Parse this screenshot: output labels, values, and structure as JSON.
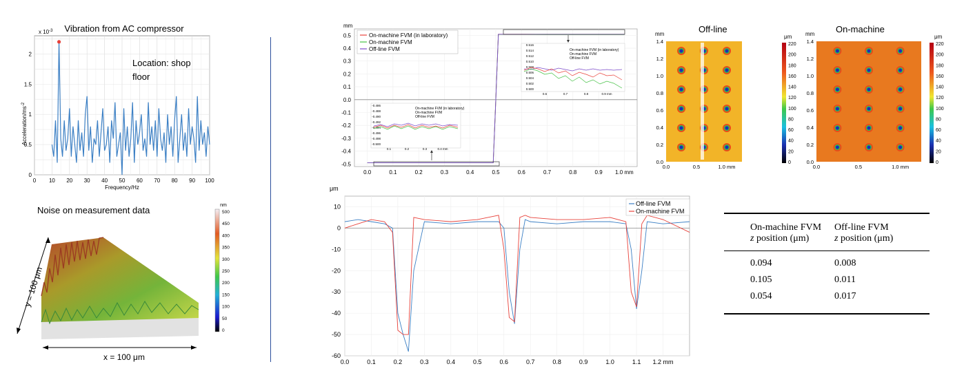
{
  "vibration": {
    "title": "Vibration from AC compressor",
    "note": "Location: shop floor",
    "exponent": "x 10",
    "exponent_power": "-3",
    "ylabel": "Acceleration/ms",
    "ylabel_power": "-2",
    "xlabel": "Frequency/Hz"
  },
  "noise": {
    "title": "Noise on measurement data",
    "colorbar_unit": "nm",
    "colorbar_ticks": [
      "500",
      "450",
      "400",
      "350",
      "300",
      "250",
      "200",
      "150",
      "100",
      "50",
      "0"
    ],
    "y_label": "y = 100 μm",
    "x_label": "x = 100 μm"
  },
  "step": {
    "yunit": "mm",
    "xunit_last": "1.0 mm",
    "legend": [
      "On-machine FVM (in laboratory)",
      "On-machine FVM",
      "Off-line FVM"
    ],
    "inset_top_yticks": [
      "0.516",
      "0.514",
      "0.512",
      "0.510",
      "0.508",
      "0.506",
      "0.504",
      "0.502",
      "0.500"
    ],
    "inset_top_xticks": [
      "0.6",
      "0.7",
      "0.8",
      "0.9 mm"
    ],
    "inset_bottom_yticks": [
      "-0.486",
      "-0.488",
      "-0.490",
      "-0.492",
      "-0.494",
      "-0.496",
      "-0.498",
      "-0.500"
    ],
    "inset_bottom_xticks": [
      "0.1",
      "0.2",
      "0.3",
      "0.4 mm"
    ]
  },
  "maps": {
    "offline_title": "Off-line",
    "onmachine_title": "On-machine",
    "yunit": "mm",
    "yticks": [
      "1.4",
      "1.2",
      "1.0",
      "0.8",
      "0.6",
      "0.4",
      "0.2",
      "0.0"
    ],
    "xticks": [
      "0.0",
      "0.5",
      "1.0 mm"
    ],
    "cb_unit": "μm",
    "cb_ticks": [
      "220",
      "200",
      "180",
      "160",
      "140",
      "120",
      "100",
      "80",
      "60",
      "40",
      "20",
      "0"
    ]
  },
  "profile": {
    "yunit": "μm",
    "xunit_last": "1.2 mm",
    "legend": [
      "Off-line FVM",
      "On-machine FVM"
    ]
  },
  "table": {
    "col1_line1": "On-machine FVM",
    "col2_line1": "Off-line FVM",
    "z": "z",
    "position": " position (μm)",
    "rows": [
      [
        "0.094",
        "0.008"
      ],
      [
        "0.105",
        "0.011"
      ],
      [
        "0.054",
        "0.017"
      ]
    ]
  },
  "colors": {
    "blue": "#3b7fc4",
    "red": "#e8413a",
    "green": "#43c043",
    "purple": "#7b4ac9",
    "divider": "#2a4d9b"
  },
  "chart_data": [
    {
      "type": "line",
      "title": "Vibration from AC compressor",
      "xlabel": "Frequency/Hz",
      "ylabel": "Acceleration/ms-2 (x 10-3)",
      "xlim": [
        0,
        100
      ],
      "ylim": [
        0,
        2.3
      ],
      "x": [
        10,
        11,
        12,
        13,
        14,
        15,
        16,
        17,
        18,
        19,
        20,
        21,
        22,
        23,
        24,
        25,
        26,
        27,
        28,
        29,
        30,
        31,
        32,
        33,
        34,
        35,
        36,
        37,
        38,
        39,
        40,
        41,
        42,
        43,
        44,
        45,
        46,
        47,
        48,
        49,
        50,
        51,
        52,
        53,
        54,
        55,
        56,
        57,
        58,
        59,
        60,
        61,
        62,
        63,
        64,
        65,
        66,
        67,
        68,
        69,
        70,
        71,
        72,
        73,
        74,
        75,
        76,
        77,
        78,
        79,
        80,
        81,
        82,
        83,
        84,
        85,
        86,
        87,
        88,
        89,
        90,
        91,
        92,
        93,
        94,
        95,
        96,
        97,
        98,
        99,
        100
      ],
      "series": [
        {
          "values": [
            0.5,
            0.3,
            0.9,
            0.2,
            2.2,
            0.6,
            0.3,
            0.9,
            0.4,
            0.6,
            1.1,
            0.3,
            0.8,
            0.5,
            0.2,
            0.9,
            0.4,
            0.7,
            0.3,
            1.0,
            1.3,
            0.4,
            0.8,
            0.2,
            0.6,
            0.5,
            0.9,
            0.3,
            0.7,
            1.1,
            0.4,
            0.5,
            0.8,
            0.2,
            0.9,
            0.6,
            1.2,
            0.3,
            0.5,
            0.7,
            0.0,
            1.1,
            0.4,
            0.8,
            0.3,
            0.6,
            1.2,
            0.2,
            0.9,
            0.5,
            0.7,
            1.0,
            0.4,
            0.6,
            0.3,
            1.2,
            0.5,
            0.8,
            0.4,
            0.9,
            0.3,
            1.1,
            0.6,
            0.4,
            0.7,
            0.2,
            1.0,
            0.5,
            0.8,
            0.3,
            0.9,
            1.3,
            0.2,
            0.6,
            1.0,
            0.4,
            0.7,
            0.3,
            1.1,
            0.5,
            0.8,
            0.6,
            0.2,
            1.3,
            0.4,
            0.9,
            0.5,
            0.7,
            0.3,
            0.8,
            0.5
          ]
        }
      ]
    },
    {
      "type": "line",
      "title": "",
      "xlabel": "mm",
      "ylabel": "mm",
      "xlim": [
        -0.05,
        1.05
      ],
      "ylim": [
        -0.52,
        0.55
      ],
      "x": [
        0.0,
        0.1,
        0.2,
        0.3,
        0.4,
        0.49,
        0.5,
        0.51,
        0.6,
        0.7,
        0.8,
        0.9,
        1.0
      ],
      "series": [
        {
          "name": "On-machine FVM (in laboratory)",
          "values": [
            -0.49,
            -0.49,
            -0.49,
            -0.49,
            -0.49,
            -0.49,
            0.0,
            0.508,
            0.508,
            0.507,
            0.507,
            0.507,
            0.507
          ]
        },
        {
          "name": "On-machine FVM",
          "values": [
            -0.49,
            -0.49,
            -0.49,
            -0.49,
            -0.49,
            -0.49,
            0.0,
            0.507,
            0.507,
            0.506,
            0.506,
            0.506,
            0.506
          ]
        },
        {
          "name": "Off-line FVM",
          "values": [
            -0.49,
            -0.49,
            -0.49,
            -0.49,
            -0.49,
            -0.49,
            0.0,
            0.508,
            0.508,
            0.508,
            0.508,
            0.508,
            0.508
          ]
        }
      ]
    },
    {
      "type": "line",
      "title": "",
      "xlabel": "mm",
      "ylabel": "μm",
      "xlim": [
        0,
        1.3
      ],
      "ylim": [
        -60,
        15
      ],
      "x": [
        0.0,
        0.05,
        0.1,
        0.15,
        0.18,
        0.2,
        0.22,
        0.24,
        0.26,
        0.3,
        0.4,
        0.5,
        0.58,
        0.6,
        0.62,
        0.64,
        0.66,
        0.68,
        0.7,
        0.8,
        0.9,
        1.0,
        1.06,
        1.08,
        1.1,
        1.12,
        1.14,
        1.2,
        1.3
      ],
      "series": [
        {
          "name": "Off-line FVM",
          "values": [
            3,
            4,
            3,
            2,
            0,
            -40,
            -50,
            -58,
            -20,
            3,
            2,
            3,
            3,
            0,
            -30,
            -45,
            -10,
            4,
            3,
            2,
            3,
            3,
            2,
            -10,
            -38,
            -20,
            3,
            2,
            3
          ]
        },
        {
          "name": "On-machine FVM",
          "values": [
            0,
            2,
            4,
            3,
            -2,
            -48,
            -50,
            -50,
            5,
            4,
            3,
            4,
            6,
            -10,
            -42,
            -44,
            5,
            6,
            5,
            4,
            4,
            5,
            3,
            -30,
            -37,
            2,
            6,
            4,
            -2
          ]
        }
      ]
    }
  ]
}
